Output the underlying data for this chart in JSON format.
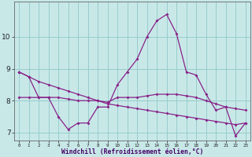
{
  "hours": [
    0,
    1,
    2,
    3,
    4,
    5,
    6,
    7,
    8,
    9,
    10,
    11,
    12,
    13,
    14,
    15,
    16,
    17,
    18,
    19,
    20,
    21,
    22,
    23
  ],
  "line1": [
    8.9,
    8.75,
    8.1,
    8.1,
    7.5,
    7.1,
    7.3,
    7.3,
    7.8,
    7.8,
    8.5,
    8.9,
    9.3,
    10.0,
    10.5,
    10.7,
    10.1,
    8.9,
    8.8,
    8.2,
    7.7,
    7.8,
    6.9,
    7.3
  ],
  "line2": [
    8.1,
    8.1,
    8.1,
    8.1,
    8.1,
    8.05,
    8.0,
    8.0,
    8.0,
    7.95,
    8.1,
    8.1,
    8.1,
    8.15,
    8.2,
    8.2,
    8.2,
    8.15,
    8.1,
    8.0,
    7.9,
    7.8,
    7.75,
    7.7
  ],
  "line3": [
    8.9,
    8.75,
    8.6,
    8.5,
    8.4,
    8.3,
    8.2,
    8.1,
    8.0,
    7.9,
    7.85,
    7.8,
    7.75,
    7.7,
    7.65,
    7.6,
    7.55,
    7.5,
    7.45,
    7.4,
    7.35,
    7.3,
    7.25,
    7.3
  ],
  "line_color": "#882288",
  "bg_color": "#c8e8e8",
  "grid_color": "#99cccc",
  "xlabel": "Windchill (Refroidissement éolien,°C)",
  "xlim": [
    -0.5,
    23.5
  ],
  "ylim": [
    6.75,
    11.1
  ],
  "yticks": [
    7,
    8,
    9,
    10
  ],
  "xticks": [
    0,
    1,
    2,
    3,
    4,
    5,
    6,
    7,
    8,
    9,
    10,
    11,
    12,
    13,
    14,
    15,
    16,
    17,
    18,
    19,
    20,
    21,
    22,
    23
  ]
}
